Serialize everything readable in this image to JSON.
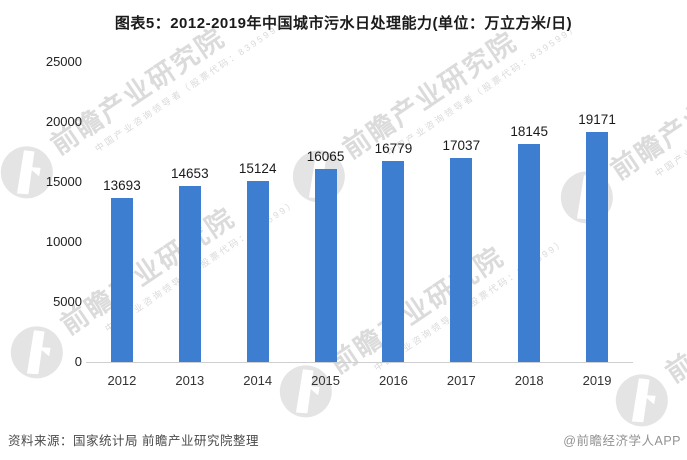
{
  "title": "图表5：2012-2019年中国城市污水日处理能力(单位：万立方米/日)",
  "chart_data": {
    "type": "bar",
    "categories": [
      "2012",
      "2013",
      "2014",
      "2015",
      "2016",
      "2017",
      "2018",
      "2019"
    ],
    "values": [
      13693,
      14653,
      15124,
      16065,
      16779,
      17037,
      18145,
      19171
    ],
    "title": "图表5：2012-2019年中国城市污水日处理能力(单位：万立方米/日)",
    "xlabel": "",
    "ylabel": "",
    "ylim": [
      0,
      25000
    ],
    "yticks": [
      0,
      5000,
      10000,
      15000,
      20000,
      25000
    ],
    "grid": false,
    "legend": false,
    "value_labels": true,
    "bar_color": "#3e7ed1"
  },
  "footer": {
    "source": "资料来源：国家统计局 前瞻产业研究院整理",
    "credit": "@前瞻经济学人APP"
  },
  "watermark": {
    "big": "前瞻产业研究院",
    "small": "中国产业咨询领导者（股票代码：839599）",
    "icon": "qianzhan-logo-icon"
  },
  "colors": {
    "bar": "#3e7ed1",
    "axis_line": "#cfcfcf",
    "title_text": "#1a1a1a",
    "tick_text": "#222222",
    "value_text": "#1a1a1a",
    "source_text": "#4a4a4a",
    "credit_text": "#929292",
    "watermark_text": "#dbdbdb",
    "background": "#ffffff"
  }
}
